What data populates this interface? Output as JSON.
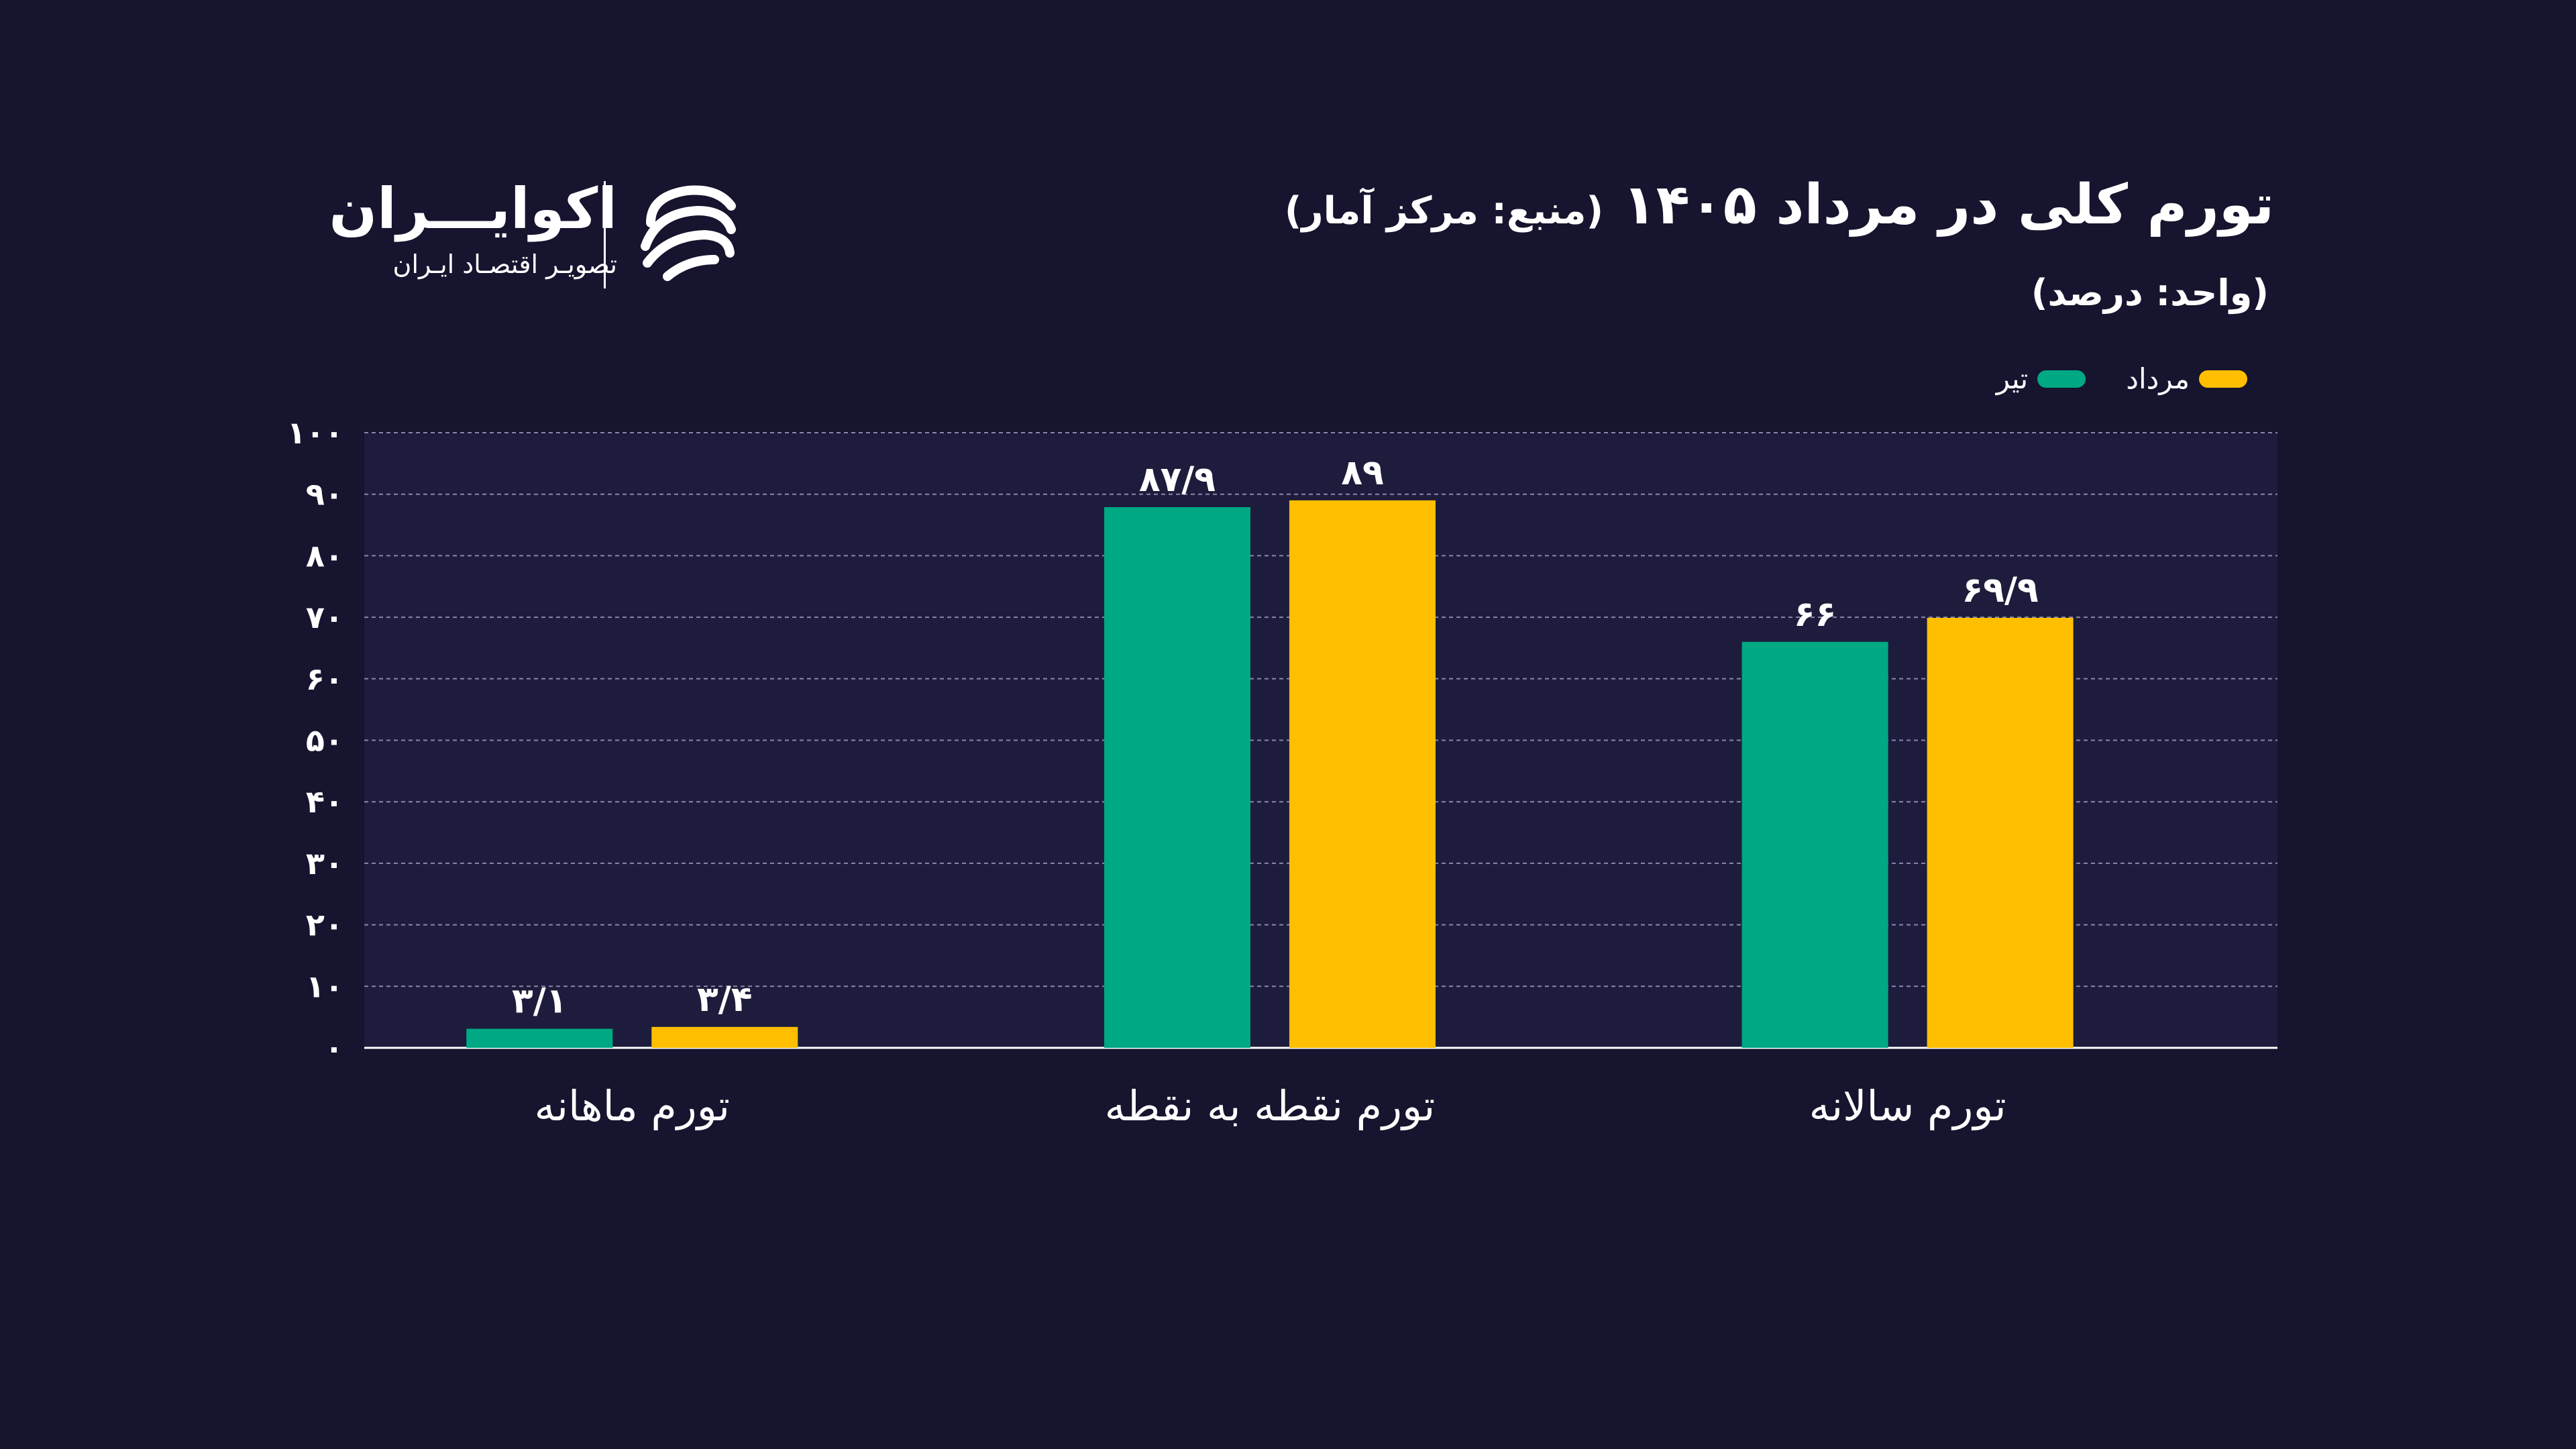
{
  "header": {
    "title": "تورم کلی در مرداد ۱۴۰۵",
    "source": "(منبع: مرکز آمار)",
    "unit": "(واحد: درصد)"
  },
  "logo": {
    "name": "اکوایـــران",
    "tagline": "تصویـر اقتصـاد ایـران"
  },
  "colors": {
    "background": "#16142e",
    "plot_background": "#1e1c3c",
    "green": "#00a884",
    "yellow": "#ffbf00",
    "grid": "#8a88aa"
  },
  "chart_data": {
    "type": "bar",
    "categories": [
      "تورم ماهانه",
      "تورم نقطه به نقطه",
      "تورم سالانه"
    ],
    "series": [
      {
        "name": "تیر",
        "color": "#00a884",
        "values": [
          3.1,
          87.9,
          66
        ],
        "value_labels": [
          "۳/۱",
          "۸۷/۹",
          "۶۶"
        ]
      },
      {
        "name": "مرداد",
        "color": "#ffbf00",
        "values": [
          3.4,
          89,
          69.9
        ],
        "value_labels": [
          "۳/۴",
          "۸۹",
          "۶۹/۹"
        ]
      }
    ],
    "ylim": [
      0,
      100
    ],
    "yticks": [
      0,
      10,
      20,
      30,
      40,
      50,
      60,
      70,
      80,
      90,
      100
    ],
    "ytick_labels": [
      "۰",
      "۱۰",
      "۲۰",
      "۳۰",
      "۴۰",
      "۵۰",
      "۶۰",
      "۷۰",
      "۸۰",
      "۹۰",
      "۱۰۰"
    ],
    "grid": true,
    "legend_position": "top-right"
  }
}
